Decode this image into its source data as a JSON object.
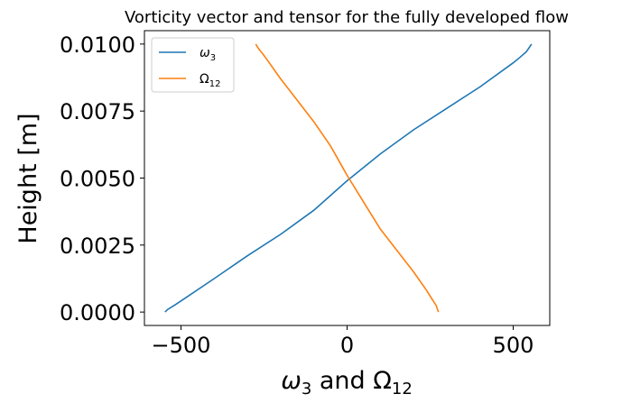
{
  "chart_data": {
    "type": "line",
    "title": "Vorticity vector and tensor for the fully developed flow",
    "xlabel": {
      "symbol_a": "ω",
      "sub_a": "3",
      "mid": " and ",
      "symbol_b": "Ω",
      "sub_b": "12"
    },
    "ylabel": "Height [m]",
    "xlim": [
      -610,
      610
    ],
    "ylim": [
      -0.0005,
      0.0105
    ],
    "xticks": [
      {
        "value": -500,
        "label": "−500"
      },
      {
        "value": 0,
        "label": "0"
      },
      {
        "value": 500,
        "label": "500"
      }
    ],
    "yticks": [
      {
        "value": 0.0,
        "label": "0.0000"
      },
      {
        "value": 0.0025,
        "label": "0.0025"
      },
      {
        "value": 0.005,
        "label": "0.0050"
      },
      {
        "value": 0.0075,
        "label": "0.0075"
      },
      {
        "value": 0.01,
        "label": "0.0100"
      }
    ],
    "legend_position": "top-left",
    "series": [
      {
        "name": "ω3",
        "legend_symbol": "ω",
        "legend_sub": "3",
        "color": "#1f77b4",
        "points": [
          [
            -548,
            0.0
          ],
          [
            -540,
            0.0001
          ],
          [
            -520,
            0.00025
          ],
          [
            -490,
            0.0005
          ],
          [
            -400,
            0.00125
          ],
          [
            -300,
            0.0021
          ],
          [
            -200,
            0.0029
          ],
          [
            -100,
            0.0038
          ],
          [
            0,
            0.0049
          ],
          [
            100,
            0.0059
          ],
          [
            200,
            0.0068
          ],
          [
            300,
            0.0076
          ],
          [
            400,
            0.0084
          ],
          [
            500,
            0.0093
          ],
          [
            520,
            0.0095
          ],
          [
            540,
            0.00972
          ],
          [
            550,
            0.0099
          ],
          [
            555,
            0.01
          ]
        ]
      },
      {
        "name": "Ω12",
        "legend_symbol": "Ω",
        "legend_sub": "12",
        "color": "#ff7f0e",
        "points": [
          [
            -275,
            0.01
          ],
          [
            -265,
            0.0098
          ],
          [
            -255,
            0.00965
          ],
          [
            -240,
            0.0094
          ],
          [
            -200,
            0.0087
          ],
          [
            -150,
            0.0079
          ],
          [
            -100,
            0.0071
          ],
          [
            -50,
            0.0062
          ],
          [
            0,
            0.0051
          ],
          [
            50,
            0.0041
          ],
          [
            100,
            0.0031
          ],
          [
            150,
            0.0023
          ],
          [
            200,
            0.0015
          ],
          [
            240,
            0.0008
          ],
          [
            255,
            0.0005
          ],
          [
            268,
            0.00025
          ],
          [
            275,
            0.0
          ]
        ]
      }
    ]
  }
}
